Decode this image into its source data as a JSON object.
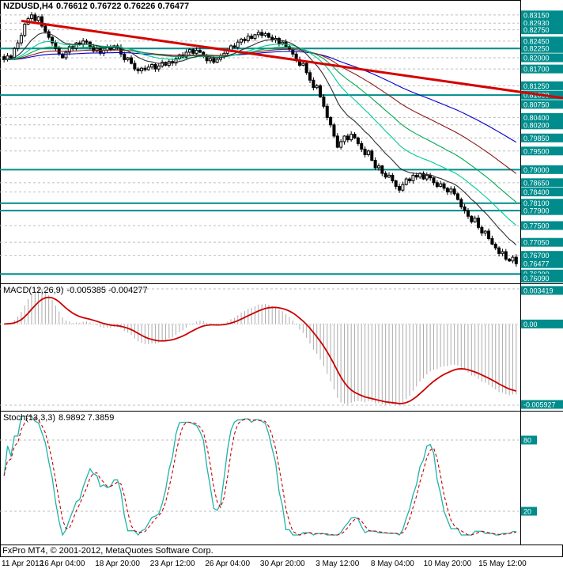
{
  "header": {
    "symbol": "NZDUSD,H4",
    "quotes": "0.76612 0.76722 0.76226 0.76477"
  },
  "footer": {
    "copyright": "FxPro MT4, © 2001-2012, MetaQuotes Software Corp."
  },
  "time_axis": {
    "labels": [
      {
        "text": "11 Apr 2012",
        "bar": 1
      },
      {
        "text": "16 Apr 04:00",
        "bar": 17
      },
      {
        "text": "18 Apr 20:00",
        "bar": 33
      },
      {
        "text": "23 Apr 12:00",
        "bar": 49
      },
      {
        "text": "26 Apr 04:00",
        "bar": 65
      },
      {
        "text": "30 Apr 20:00",
        "bar": 81
      },
      {
        "text": "3 May 12:00",
        "bar": 97
      },
      {
        "text": "8 May 04:00",
        "bar": 113
      },
      {
        "text": "10 May 20:00",
        "bar": 129
      },
      {
        "text": "15 May 12:00",
        "bar": 145
      }
    ]
  },
  "chart_data": {
    "type": "candlestick",
    "symbol": "NZDUSD",
    "timeframe": "H4",
    "colors": {
      "background": "#FFFFFF",
      "scale_label_bg": "#008C8C",
      "scale_label_text": "#FFFFFF",
      "grid_dash": "#BEBEBE",
      "level_solid": "#008C8C",
      "trendline": "#D40000",
      "candle_up": "#FFFFFF",
      "candle_down": "#000000",
      "candle_border": "#000000",
      "macd_histogram": "#ABABAB",
      "macd_signal": "#CC0000",
      "stoch_k": "#20B2AA",
      "stoch_d": "#CC0000"
    },
    "price_scale": {
      "min": 0.7595,
      "max": 0.8355,
      "labels": [
        {
          "text": "0.83150",
          "price": 0.8315,
          "line": "dash"
        },
        {
          "text": "0.82930",
          "price": 0.8293,
          "line": "dash"
        },
        {
          "text": "0.82750",
          "price": 0.8275,
          "line": "dash"
        },
        {
          "text": "0.82450",
          "price": 0.8245,
          "line": "dash"
        },
        {
          "text": "0.82250",
          "price": 0.8225,
          "line": "solid"
        },
        {
          "text": "0.82000",
          "price": 0.82,
          "line": "dash"
        },
        {
          "text": "0.81700",
          "price": 0.817,
          "line": "dash"
        },
        {
          "text": "0.81250",
          "price": 0.8125,
          "line": "dash"
        },
        {
          "text": "0.81000",
          "price": 0.81,
          "line": "solid"
        },
        {
          "text": "0.80750",
          "price": 0.8075,
          "line": "dash"
        },
        {
          "text": "0.80400",
          "price": 0.804,
          "line": "dash"
        },
        {
          "text": "0.80200",
          "price": 0.802,
          "line": "dash"
        },
        {
          "text": "0.79850",
          "price": 0.7985,
          "line": "dash"
        },
        {
          "text": "0.79500",
          "price": 0.795,
          "line": "dash"
        },
        {
          "text": "0.79000",
          "price": 0.79,
          "line": "solid"
        },
        {
          "text": "0.78650",
          "price": 0.7865,
          "line": "dash"
        },
        {
          "text": "0.78400",
          "price": 0.784,
          "line": "dash"
        },
        {
          "text": "0.78100",
          "price": 0.781,
          "line": "solid"
        },
        {
          "text": "0.77900",
          "price": 0.779,
          "line": "solid"
        },
        {
          "text": "0.77500",
          "price": 0.775,
          "line": "dash"
        },
        {
          "text": "0.77050",
          "price": 0.7705,
          "line": "dash"
        },
        {
          "text": "0.76700",
          "price": 0.767,
          "line": "dash"
        },
        {
          "text": "0.76477",
          "price": 0.76477,
          "line": "none",
          "current": true
        },
        {
          "text": "0.76200",
          "price": 0.762,
          "line": "solid"
        },
        {
          "text": "0.76090",
          "price": 0.7609,
          "line": "none"
        }
      ]
    },
    "closes": [
      0.8195,
      0.8205,
      0.82,
      0.8225,
      0.824,
      0.826,
      0.829,
      0.8305,
      0.8315,
      0.83,
      0.831,
      0.8285,
      0.827,
      0.8255,
      0.824,
      0.8225,
      0.821,
      0.82,
      0.8215,
      0.823,
      0.8225,
      0.824,
      0.8235,
      0.8245,
      0.8242,
      0.823,
      0.8218,
      0.8225,
      0.8212,
      0.822,
      0.8228,
      0.8222,
      0.8232,
      0.8228,
      0.821,
      0.8195,
      0.82,
      0.8185,
      0.817,
      0.8165,
      0.8172,
      0.8168,
      0.8175,
      0.8182,
      0.817,
      0.8178,
      0.8188,
      0.818,
      0.819,
      0.8186,
      0.8198,
      0.8208,
      0.8202,
      0.8215,
      0.8222,
      0.8212,
      0.822,
      0.8215,
      0.8205,
      0.8192,
      0.8198,
      0.8188,
      0.8196,
      0.8205,
      0.8212,
      0.822,
      0.8232,
      0.8228,
      0.8242,
      0.825,
      0.8246,
      0.8258,
      0.8252,
      0.8262,
      0.8268,
      0.826,
      0.8265,
      0.8255,
      0.8248,
      0.8252,
      0.8238,
      0.8242,
      0.823,
      0.8222,
      0.821,
      0.8195,
      0.818,
      0.8185,
      0.816,
      0.814,
      0.812,
      0.8125,
      0.8095,
      0.807,
      0.804,
      0.802,
      0.799,
      0.796,
      0.7975,
      0.799,
      0.798,
      0.7995,
      0.7985,
      0.797,
      0.7955,
      0.794,
      0.795,
      0.7925,
      0.7905,
      0.791,
      0.789,
      0.788,
      0.7885,
      0.787,
      0.7855,
      0.7845,
      0.786,
      0.7875,
      0.787,
      0.7885,
      0.788,
      0.789,
      0.7875,
      0.7885,
      0.7878,
      0.7865,
      0.7855,
      0.7862,
      0.785,
      0.784,
      0.7848,
      0.7835,
      0.782,
      0.78,
      0.779,
      0.7775,
      0.776,
      0.777,
      0.7745,
      0.773,
      0.7735,
      0.7715,
      0.77,
      0.769,
      0.7675,
      0.768,
      0.766,
      0.7655,
      0.7665,
      0.76477
    ],
    "trendline": {
      "x1_frac": 0.038,
      "price1": 0.8299,
      "x2_frac": 1.0,
      "price2": 0.8092,
      "color": "#D40000",
      "width": 3
    },
    "moving_averages": [
      {
        "period": 120,
        "color": "#0000C8"
      },
      {
        "period": 72,
        "color": "#8B1A1A"
      },
      {
        "period": 44,
        "color": "#00A651"
      },
      {
        "period": 26,
        "color": "#00C896"
      },
      {
        "period": 13,
        "color": "#2F2F2F"
      }
    ],
    "macd": {
      "name": "MACD(12,26,9)",
      "values": "-0.005385 -0.004277",
      "fast": 12,
      "slow": 26,
      "signal": 9,
      "scale": {
        "top": "0.003419",
        "zero": "0.00",
        "bottom": "-0.005927"
      }
    },
    "stoch": {
      "name": "Stoch(13,3,3)",
      "values": "8.9892 7.3859",
      "k": 13,
      "smooth": 3,
      "d": 3,
      "scale": [
        {
          "text": "80",
          "value": 80
        },
        {
          "text": "20",
          "value": 20
        }
      ]
    }
  }
}
